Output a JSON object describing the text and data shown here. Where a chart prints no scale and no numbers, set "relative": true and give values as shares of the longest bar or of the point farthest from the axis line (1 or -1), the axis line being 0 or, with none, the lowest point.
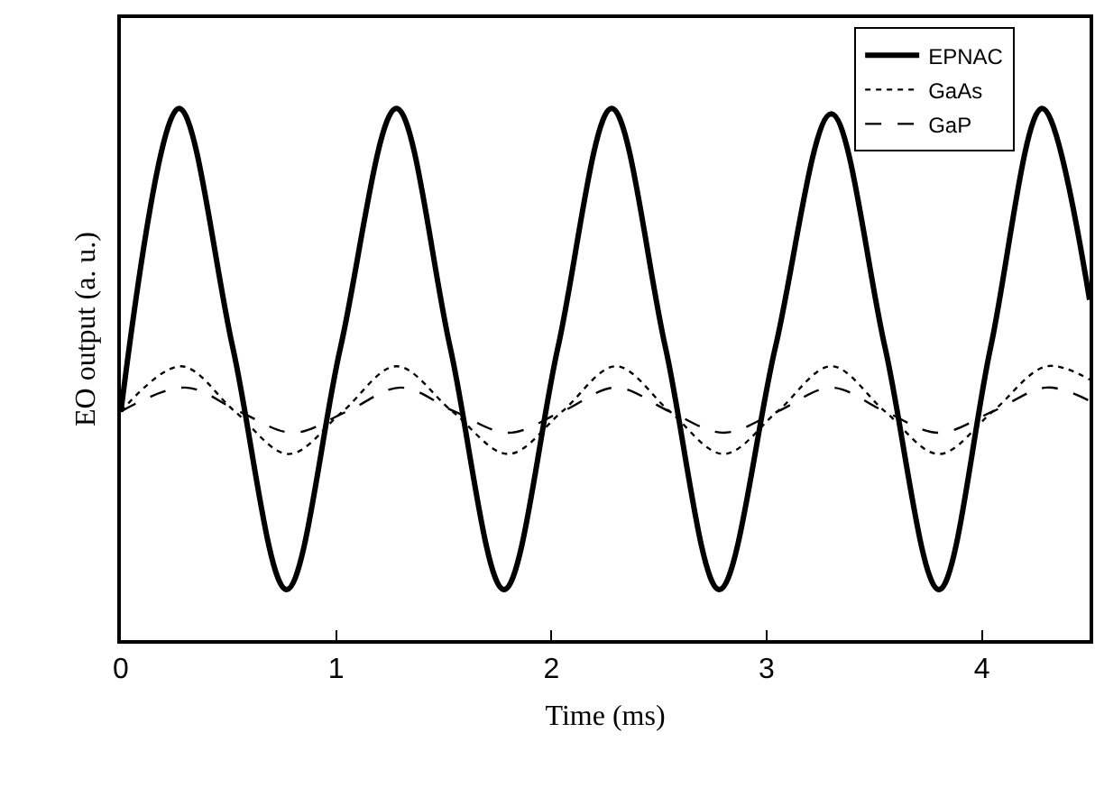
{
  "chart_data": {
    "type": "line",
    "relative": true,
    "xlabel": "Time (ms)",
    "ylabel": "EO output (a. u.)",
    "xlim": [
      0,
      4.5
    ],
    "xticks": [
      0,
      1,
      2,
      3,
      4
    ],
    "tick_labels": "x",
    "grid": false,
    "legend": "top right",
    "series": [
      {
        "name": "EPNAC",
        "color": "#000000",
        "line_style": "solid",
        "x": [
          0,
          0.27,
          0.52,
          0.77,
          1.02,
          1.28,
          1.53,
          1.78,
          2.03,
          2.28,
          2.53,
          2.78,
          3.04,
          3.3,
          3.55,
          3.8,
          4.04,
          4.28,
          4.5
        ],
        "values": [
          0.43,
          1.0,
          0.55,
          0.095,
          0.55,
          1.0,
          0.55,
          0.095,
          0.55,
          1.0,
          0.55,
          0.095,
          0.55,
          0.99,
          0.55,
          0.095,
          0.55,
          1.0,
          0.64
        ]
      },
      {
        "name": "GaAs",
        "color": "#000000",
        "line_style": "dotted",
        "x": [
          0,
          0.28,
          0.53,
          0.78,
          1.03,
          1.28,
          1.54,
          1.8,
          2.05,
          2.3,
          2.55,
          2.8,
          3.05,
          3.3,
          3.55,
          3.8,
          4.05,
          4.3,
          4.5
        ],
        "values": [
          0.43,
          0.515,
          0.43,
          0.35,
          0.43,
          0.515,
          0.43,
          0.35,
          0.43,
          0.515,
          0.43,
          0.35,
          0.43,
          0.515,
          0.43,
          0.35,
          0.43,
          0.515,
          0.49
        ]
      },
      {
        "name": "GaP",
        "color": "#000000",
        "line_style": "dashed",
        "x": [
          0,
          0.3,
          0.55,
          0.8,
          1.05,
          1.3,
          1.55,
          1.8,
          2.05,
          2.3,
          2.55,
          2.8,
          3.05,
          3.3,
          3.55,
          3.8,
          4.05,
          4.3,
          4.5
        ],
        "values": [
          0.43,
          0.475,
          0.43,
          0.39,
          0.43,
          0.475,
          0.43,
          0.39,
          0.43,
          0.475,
          0.43,
          0.39,
          0.43,
          0.475,
          0.43,
          0.39,
          0.43,
          0.475,
          0.45
        ]
      }
    ]
  }
}
